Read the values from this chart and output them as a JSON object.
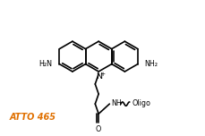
{
  "background_color": "#ffffff",
  "label_atto": "ATTO 465",
  "label_atto_color": "#e07000",
  "label_atto_fontsize": 7.0,
  "line_color": "#000000",
  "line_width": 1.2,
  "text_color": "#000000",
  "text_fontsize": 5.8,
  "nh_label": "NH",
  "o_label": "O",
  "n_label": "N",
  "plus_label": "+",
  "h2n_left_label": "H₂N",
  "h2n_right_label": "NH₂"
}
